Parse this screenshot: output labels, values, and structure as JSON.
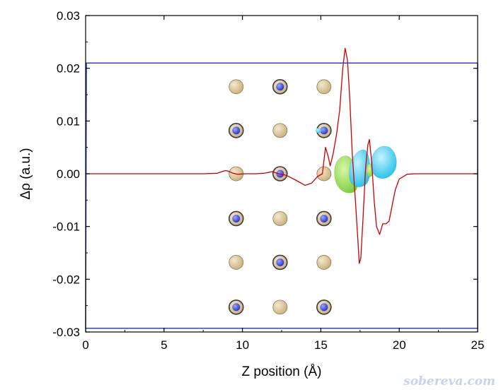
{
  "chart_data": {
    "type": "line",
    "title": "",
    "xlabel": "Z position (Å)",
    "ylabel": "Δρ (a.u.)",
    "xlim": [
      0,
      25
    ],
    "ylim": [
      -0.03,
      0.03
    ],
    "x_ticks": [
      "0",
      "5",
      "10",
      "15",
      "20",
      "25"
    ],
    "y_ticks": [
      "0.03",
      "0.02",
      "0.01",
      "0.00",
      "-0.01",
      "-0.02",
      "-0.03"
    ],
    "grid": false,
    "legend": "none",
    "series": [
      {
        "color": "#cc0000",
        "points": [
          [
            0.0,
            0.0
          ],
          [
            7.5,
            0.0
          ],
          [
            8.4,
            0.0001
          ],
          [
            8.9,
            0.0006
          ],
          [
            9.1,
            0.0005
          ],
          [
            9.4,
            0.0001
          ],
          [
            9.7,
            -0.0001
          ],
          [
            10.2,
            0.0
          ],
          [
            10.8,
            0.0
          ],
          [
            11.4,
            0.0001
          ],
          [
            11.9,
            0.0004
          ],
          [
            12.2,
            0.0001
          ],
          [
            12.8,
            -0.0003
          ],
          [
            13.4,
            -0.0012
          ],
          [
            14.0,
            -0.0022
          ],
          [
            14.4,
            -0.0018
          ],
          [
            14.8,
            -0.0005
          ],
          [
            15.1,
            0.0
          ],
          [
            15.3,
            0.005
          ],
          [
            15.45,
            0.0035
          ],
          [
            15.6,
            0.0015
          ],
          [
            15.8,
            0.004
          ],
          [
            16.0,
            0.0075
          ],
          [
            16.2,
            0.012
          ],
          [
            16.4,
            0.02
          ],
          [
            16.55,
            0.0238
          ],
          [
            16.7,
            0.0215
          ],
          [
            16.85,
            0.014
          ],
          [
            17.0,
            0.004
          ],
          [
            17.2,
            -0.005
          ],
          [
            17.35,
            -0.012
          ],
          [
            17.45,
            -0.017
          ],
          [
            17.55,
            -0.016
          ],
          [
            17.7,
            -0.008
          ],
          [
            17.85,
            0.001
          ],
          [
            18.0,
            0.0055
          ],
          [
            18.1,
            0.0065
          ],
          [
            18.25,
            0.002
          ],
          [
            18.4,
            -0.005
          ],
          [
            18.55,
            -0.01
          ],
          [
            18.75,
            -0.0115
          ],
          [
            18.95,
            -0.0095
          ],
          [
            19.15,
            -0.0095
          ],
          [
            19.35,
            -0.009
          ],
          [
            19.55,
            -0.006
          ],
          [
            19.75,
            -0.003
          ],
          [
            20.0,
            -0.001
          ],
          [
            20.5,
            -0.0001
          ],
          [
            21.0,
            0.0
          ],
          [
            25.0,
            0.0
          ]
        ]
      },
      {
        "color": "#3040c8",
        "points": [
          [
            0.0,
            -0.0293
          ],
          [
            0.05,
            0.021
          ],
          [
            25.0,
            0.021
          ],
          [
            25.0,
            -0.0293
          ],
          [
            0.0,
            -0.0293
          ]
        ]
      }
    ],
    "atom_rows": [
      [
        0.0165,
        [
          "Au",
          "N",
          "Au"
        ]
      ],
      [
        0.0082,
        [
          "N",
          "Au",
          "N"
        ]
      ],
      [
        0.0,
        [
          "Au",
          "N",
          "Au"
        ]
      ],
      [
        -0.0085,
        [
          "N",
          "Au",
          "N"
        ]
      ],
      [
        -0.0168,
        [
          "Au",
          "N",
          "Au"
        ]
      ],
      [
        -0.0253,
        [
          "N",
          "Au",
          "N"
        ]
      ]
    ],
    "atom_columns_x": [
      9.6,
      12.4,
      15.2
    ],
    "atom_colors": {
      "Au": "#c8b07a",
      "N": "#2530cc",
      "outline": "#3a3a3a"
    },
    "isosurface_colors": {
      "positive": "#22c0e8",
      "negative": "#7ecf3a"
    }
  },
  "watermark": "sobereva.com"
}
